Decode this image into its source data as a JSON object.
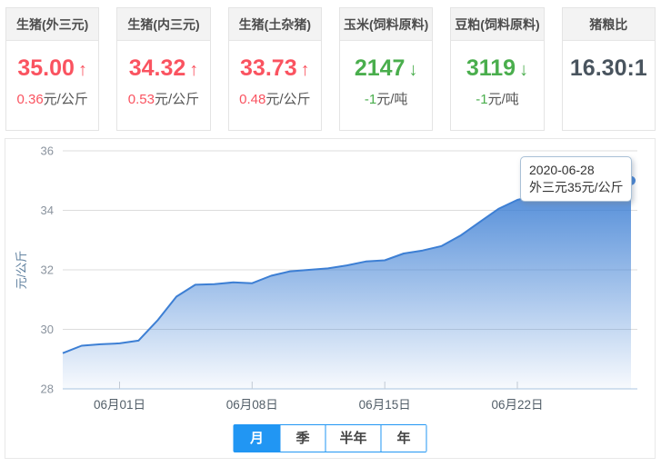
{
  "cards": [
    {
      "title": "生猪(外三元)",
      "value": "35.00",
      "arrow": "↑",
      "delta": "0.36",
      "unit": "元/公斤",
      "tone": "red"
    },
    {
      "title": "生猪(内三元)",
      "value": "34.32",
      "arrow": "↑",
      "delta": "0.53",
      "unit": "元/公斤",
      "tone": "red"
    },
    {
      "title": "生猪(土杂猪)",
      "value": "33.73",
      "arrow": "↑",
      "delta": "0.48",
      "unit": "元/公斤",
      "tone": "red"
    },
    {
      "title": "玉米(饲料原料)",
      "value": "2147",
      "arrow": "↓",
      "delta": "-1",
      "unit": "元/吨",
      "tone": "green"
    },
    {
      "title": "豆粕(饲料原料)",
      "value": "3119",
      "arrow": "↓",
      "delta": "-1",
      "unit": "元/吨",
      "tone": "green"
    },
    {
      "title": "猪粮比",
      "value": "16.30:1",
      "arrow": "",
      "delta": "",
      "unit": "",
      "tone": "plain"
    }
  ],
  "chart_data": {
    "type": "area",
    "title": "",
    "ylabel": "元/公斤",
    "ylim": [
      28,
      36
    ],
    "yticks": [
      36,
      34,
      32,
      30,
      28
    ],
    "x": [
      "05-29",
      "05-30",
      "05-31",
      "06-01",
      "06-02",
      "06-03",
      "06-04",
      "06-05",
      "06-06",
      "06-07",
      "06-08",
      "06-09",
      "06-10",
      "06-11",
      "06-12",
      "06-13",
      "06-14",
      "06-15",
      "06-16",
      "06-17",
      "06-18",
      "06-19",
      "06-20",
      "06-21",
      "06-22",
      "06-23",
      "06-24",
      "06-25",
      "06-26",
      "06-27",
      "06-28"
    ],
    "values": [
      29.2,
      29.45,
      29.5,
      29.53,
      29.62,
      30.3,
      31.1,
      31.5,
      31.52,
      31.58,
      31.55,
      31.8,
      31.95,
      32.0,
      32.05,
      32.15,
      32.28,
      32.32,
      32.55,
      32.65,
      32.8,
      33.15,
      33.6,
      34.05,
      34.35,
      34.5,
      34.55,
      34.5,
      34.5,
      34.6,
      35.0
    ],
    "xticks": [
      {
        "index": 3,
        "label": "06月01日"
      },
      {
        "index": 10,
        "label": "06月08日"
      },
      {
        "index": 17,
        "label": "06月15日"
      },
      {
        "index": 24,
        "label": "06月22日"
      }
    ],
    "grid_on": true,
    "series_name": "外三元",
    "line_color": "#3d7fd4",
    "fill_color": "#3d7fd4",
    "axis_line_color": "#abc6e0",
    "grid_color": "#dcdcdc",
    "tooltip": {
      "date": "2020-06-28",
      "text": "外三元35元/公斤"
    }
  },
  "tabs": [
    {
      "label": "月",
      "active": true
    },
    {
      "label": "季",
      "active": false
    },
    {
      "label": "半年",
      "active": false
    },
    {
      "label": "年",
      "active": false
    }
  ],
  "colors": {
    "up_red": "#fa5360",
    "down_green": "#4aae4d",
    "accent_blue": "#2196f3"
  }
}
